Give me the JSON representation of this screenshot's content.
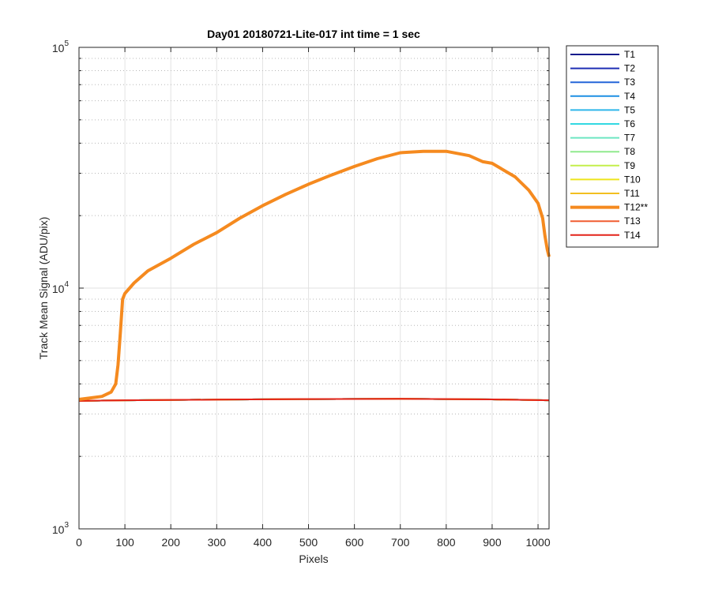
{
  "chart_data": {
    "type": "line",
    "title": "Day01 20180721-Lite-017 int time = 1 sec",
    "xlabel": "Pixels",
    "ylabel": "Track Mean Signal (ADU/pix)",
    "xlim": [
      0,
      1024
    ],
    "ylim": [
      1000,
      100000
    ],
    "yscale": "log",
    "grid": true,
    "legend_position": "outside-top-right",
    "x_ticks": [
      "0",
      "100",
      "200",
      "300",
      "400",
      "500",
      "600",
      "700",
      "800",
      "900",
      "1000"
    ],
    "y_ticks": [
      {
        "base": "10",
        "exp": "3"
      },
      {
        "base": "10",
        "exp": "4"
      },
      {
        "base": "10",
        "exp": "5"
      }
    ],
    "series": [
      {
        "name": "T1",
        "color": "#0d1a8c",
        "width": 2,
        "x": [
          0,
          100,
          300,
          500,
          700,
          900,
          1024
        ],
        "y": [
          3400,
          3420,
          3440,
          3460,
          3470,
          3450,
          3420
        ]
      },
      {
        "name": "T2",
        "color": "#1f2fb4",
        "width": 2,
        "x": [
          0,
          100,
          300,
          500,
          700,
          900,
          1024
        ],
        "y": [
          3400,
          3420,
          3440,
          3460,
          3470,
          3450,
          3420
        ]
      },
      {
        "name": "T3",
        "color": "#2466d8",
        "width": 2,
        "x": [
          0,
          100,
          300,
          500,
          700,
          900,
          1024
        ],
        "y": [
          3400,
          3420,
          3440,
          3460,
          3470,
          3450,
          3420
        ]
      },
      {
        "name": "T4",
        "color": "#1e8fe3",
        "width": 2,
        "x": [
          0,
          100,
          300,
          500,
          700,
          900,
          1024
        ],
        "y": [
          3400,
          3420,
          3440,
          3460,
          3470,
          3450,
          3420
        ]
      },
      {
        "name": "T5",
        "color": "#2fb6ea",
        "width": 2,
        "x": [
          0,
          100,
          300,
          500,
          700,
          900,
          1024
        ],
        "y": [
          3400,
          3420,
          3440,
          3460,
          3470,
          3450,
          3420
        ]
      },
      {
        "name": "T6",
        "color": "#33d8e2",
        "width": 2,
        "x": [
          0,
          100,
          300,
          500,
          700,
          900,
          1024
        ],
        "y": [
          3400,
          3420,
          3440,
          3460,
          3470,
          3450,
          3420
        ]
      },
      {
        "name": "T7",
        "color": "#6de6c2",
        "width": 2,
        "x": [
          0,
          100,
          300,
          500,
          700,
          900,
          1024
        ],
        "y": [
          3400,
          3420,
          3440,
          3460,
          3470,
          3450,
          3420
        ]
      },
      {
        "name": "T8",
        "color": "#90ea8e",
        "width": 2,
        "x": [
          0,
          100,
          300,
          500,
          700,
          900,
          1024
        ],
        "y": [
          3400,
          3420,
          3440,
          3460,
          3470,
          3450,
          3420
        ]
      },
      {
        "name": "T9",
        "color": "#c4ef4c",
        "width": 2,
        "x": [
          0,
          100,
          300,
          500,
          700,
          900,
          1024
        ],
        "y": [
          3400,
          3420,
          3440,
          3460,
          3470,
          3450,
          3420
        ]
      },
      {
        "name": "T10",
        "color": "#eee51d",
        "width": 2,
        "x": [
          0,
          100,
          300,
          500,
          700,
          900,
          1024
        ],
        "y": [
          3400,
          3420,
          3440,
          3460,
          3470,
          3450,
          3420
        ]
      },
      {
        "name": "T11",
        "color": "#f2bf21",
        "width": 2,
        "x": [
          0,
          100,
          300,
          500,
          700,
          900,
          1024
        ],
        "y": [
          3400,
          3420,
          3440,
          3460,
          3470,
          3450,
          3420
        ]
      },
      {
        "name": "T12**",
        "color": "#f58a1f",
        "width": 4,
        "x": [
          0,
          50,
          70,
          80,
          85,
          90,
          95,
          100,
          120,
          150,
          200,
          250,
          300,
          350,
          400,
          450,
          500,
          550,
          600,
          650,
          700,
          750,
          800,
          850,
          880,
          900,
          950,
          980,
          1000,
          1010,
          1015,
          1020,
          1024
        ],
        "y": [
          3450,
          3550,
          3700,
          4000,
          4800,
          6500,
          9000,
          9500,
          10500,
          11800,
          13300,
          15200,
          17000,
          19500,
          22000,
          24500,
          27000,
          29500,
          32000,
          34500,
          36500,
          37000,
          37000,
          35500,
          33500,
          33000,
          29000,
          25500,
          22500,
          19500,
          16500,
          14500,
          13500
        ]
      },
      {
        "name": "T13",
        "color": "#f05d31",
        "width": 2,
        "x": [
          0,
          100,
          300,
          500,
          700,
          900,
          1024
        ],
        "y": [
          3400,
          3420,
          3440,
          3460,
          3470,
          3450,
          3420
        ]
      },
      {
        "name": "T14",
        "color": "#e32319",
        "width": 2,
        "x": [
          0,
          100,
          300,
          500,
          700,
          900,
          1024
        ],
        "y": [
          3400,
          3420,
          3440,
          3460,
          3470,
          3450,
          3420
        ]
      }
    ]
  }
}
